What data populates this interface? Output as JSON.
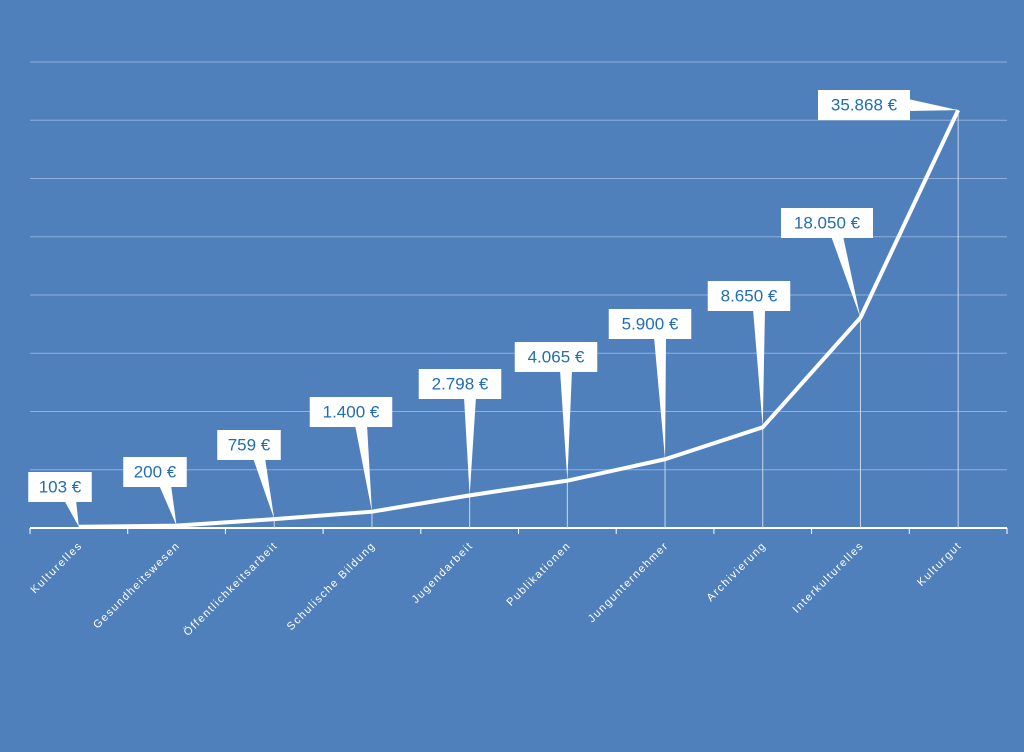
{
  "chart_data": {
    "type": "line",
    "categories": [
      "Kulturelles",
      "Gesundheitswesen",
      "Öffentlichkeitsarbeit",
      "Schulische Bildung",
      "Jugendarbeit",
      "Publikationen",
      "Jungunternehmer",
      "Archivierung",
      "Interkulturelles",
      "Kulturgut"
    ],
    "values": [
      103,
      200,
      759,
      1400,
      2798,
      4065,
      5900,
      8650,
      18050,
      35868
    ],
    "value_labels": [
      "103 €",
      "200 €",
      "759 €",
      "1.400 €",
      "2.798 €",
      "4.065 €",
      "5.900 €",
      "8.650 €",
      "18.050 €",
      "35.868 €"
    ],
    "color": "#ffffff",
    "ylim": [
      0,
      40000
    ],
    "yticks": [
      5000,
      10000,
      15000,
      20000,
      25000,
      30000,
      35000,
      40000
    ],
    "grid": true
  }
}
